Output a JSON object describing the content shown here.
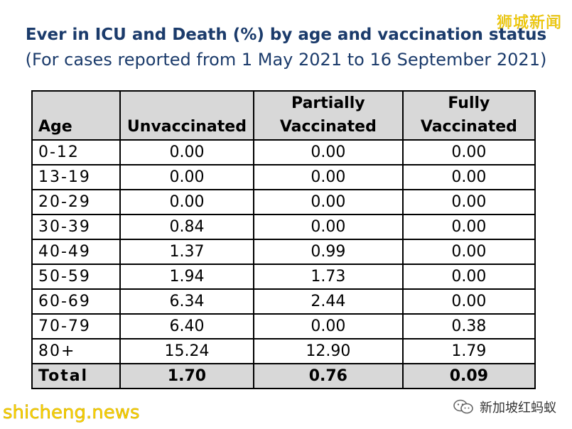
{
  "watermark_top": "狮城新闻",
  "watermark_bottom": "shicheng.news",
  "source_label": "新加坡红蚂蚁",
  "icons": {
    "source": "wechat-icon"
  },
  "colors": {
    "title": "#1b3b6b",
    "header_bg": "#d8d8d8",
    "watermark": "#ffd400"
  },
  "chart_data": {
    "type": "table",
    "title": "Ever in ICU and Death (%) by age and vaccination status",
    "subtitle": "(For cases reported from 1 May 2021 to 16 September 2021)",
    "columns": [
      {
        "line1": "",
        "line2": "Age"
      },
      {
        "line1": "",
        "line2": "Unvaccinated"
      },
      {
        "line1": "Partially",
        "line2": "Vaccinated"
      },
      {
        "line1": "Fully",
        "line2": "Vaccinated"
      }
    ],
    "rows": [
      [
        "0-12",
        "0.00",
        "0.00",
        "0.00"
      ],
      [
        "13-19",
        "0.00",
        "0.00",
        "0.00"
      ],
      [
        "20-29",
        "0.00",
        "0.00",
        "0.00"
      ],
      [
        "30-39",
        "0.84",
        "0.00",
        "0.00"
      ],
      [
        "40-49",
        "1.37",
        "0.99",
        "0.00"
      ],
      [
        "50-59",
        "1.94",
        "1.73",
        "0.00"
      ],
      [
        "60-69",
        "6.34",
        "2.44",
        "0.00"
      ],
      [
        "70-79",
        "6.40",
        "0.00",
        "0.38"
      ],
      [
        "80+",
        "15.24",
        "12.90",
        "1.79"
      ]
    ],
    "total": [
      "Total",
      "1.70",
      "0.76",
      "0.09"
    ]
  }
}
